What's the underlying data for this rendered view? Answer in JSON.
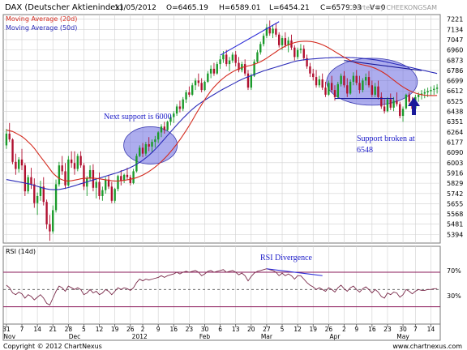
{
  "header": {
    "title": "DAX (Deutscher Aktienindex)",
    "date": "11/05/2012",
    "open": "O=6465.19",
    "high": "H=6589.01",
    "low": "L=6454.21",
    "close": "C=6579.93",
    "volume": "V=0",
    "credit": "Charted By CHEEKONGSAM"
  },
  "legend": [
    {
      "label": "Moving Average (20d)",
      "color": "#d42a1e"
    },
    {
      "label": "Moving Average (50d)",
      "color": "#2a2ab8"
    }
  ],
  "annotations": {
    "support": "Next support is 6000",
    "broken_line1": "Support broken at",
    "broken_line2": "6548",
    "rsi_div": "RSI Divergence"
  },
  "rsi_panel": {
    "label": "RSI (14d)",
    "level_high": "70%",
    "level_low": "30%"
  },
  "footer": {
    "copyright": "Copyright © 2012 ChartNexus",
    "site": "www.chartnexus.com"
  },
  "colors": {
    "up": "#1a9a2a",
    "down": "#b01030",
    "ma20": "#d42a1e",
    "ma50": "#2a2ab8",
    "rsi": "#7a2a4a",
    "ellipse": "#6a6ae0",
    "grid": "#d0d0d0",
    "rsi_band": "#8a1a5a"
  },
  "chart_data": {
    "type": "candlestick",
    "title": "DAX (Deutscher Aktienindex)",
    "x_ticks": [
      {
        "label": "31",
        "index": 0
      },
      {
        "label": "7",
        "index": 5
      },
      {
        "label": "14",
        "index": 10
      },
      {
        "label": "21",
        "index": 15
      },
      {
        "label": "28",
        "index": 20
      },
      {
        "label": "5",
        "index": 25
      },
      {
        "label": "12",
        "index": 30
      },
      {
        "label": "19",
        "index": 35
      },
      {
        "label": "26",
        "index": 40
      },
      {
        "label": "2",
        "index": 44
      },
      {
        "label": "9",
        "index": 49
      },
      {
        "label": "16",
        "index": 54
      },
      {
        "label": "23",
        "index": 59
      },
      {
        "label": "30",
        "index": 64
      },
      {
        "label": "6",
        "index": 69
      },
      {
        "label": "13",
        "index": 74
      },
      {
        "label": "20",
        "index": 79
      },
      {
        "label": "27",
        "index": 84
      },
      {
        "label": "5",
        "index": 89
      },
      {
        "label": "12",
        "index": 94
      },
      {
        "label": "19",
        "index": 99
      },
      {
        "label": "26",
        "index": 104
      },
      {
        "label": "2",
        "index": 109
      },
      {
        "label": "9",
        "index": 113
      },
      {
        "label": "16",
        "index": 118
      },
      {
        "label": "23",
        "index": 123
      },
      {
        "label": "30",
        "index": 128
      },
      {
        "label": "7",
        "index": 132
      },
      {
        "label": "14",
        "index": 137
      }
    ],
    "month_labels": [
      {
        "label": "Nov",
        "index": 1
      },
      {
        "label": "Dec",
        "index": 22
      },
      {
        "label": "2012",
        "index": 43
      },
      {
        "label": "Feb",
        "index": 64
      },
      {
        "label": "Mar",
        "index": 84
      },
      {
        "label": "Apr",
        "index": 106
      },
      {
        "label": "May",
        "index": 128
      }
    ],
    "y_ticks": [
      7221,
      7134,
      7047,
      6960,
      6873,
      6786,
      6699,
      6612,
      6525,
      6438,
      6351,
      6264,
      6177,
      6090,
      6003,
      5916,
      5829,
      5742,
      5655,
      5568,
      5481,
      5394
    ],
    "ylim": [
      5321,
      7260
    ],
    "x_count": 140,
    "candles": [
      [
        6150,
        6290,
        6120,
        6250
      ],
      [
        6250,
        6340,
        6180,
        6200
      ],
      [
        6200,
        6210,
        5990,
        6010
      ],
      [
        6010,
        6080,
        5900,
        5950
      ],
      [
        5950,
        6050,
        5920,
        6030
      ],
      [
        6030,
        6120,
        5940,
        5980
      ],
      [
        5980,
        6000,
        5720,
        5760
      ],
      [
        5760,
        5900,
        5740,
        5880
      ],
      [
        5880,
        5960,
        5780,
        5820
      ],
      [
        5820,
        5870,
        5620,
        5660
      ],
      [
        5660,
        5750,
        5560,
        5720
      ],
      [
        5720,
        5850,
        5680,
        5800
      ],
      [
        5800,
        5880,
        5640,
        5670
      ],
      [
        5670,
        5690,
        5440,
        5480
      ],
      [
        5480,
        5560,
        5340,
        5420
      ],
      [
        5420,
        5640,
        5400,
        5600
      ],
      [
        5600,
        5860,
        5580,
        5820
      ],
      [
        5820,
        6010,
        5800,
        5980
      ],
      [
        5980,
        6060,
        5900,
        5930
      ],
      [
        5930,
        6000,
        5780,
        5810
      ],
      [
        5810,
        6060,
        5800,
        6030
      ],
      [
        6030,
        6100,
        5960,
        6000
      ],
      [
        6000,
        6100,
        5900,
        5950
      ],
      [
        5950,
        6080,
        5930,
        6060
      ],
      [
        6060,
        6100,
        5960,
        5980
      ],
      [
        5980,
        6000,
        5770,
        5800
      ],
      [
        5800,
        5890,
        5720,
        5870
      ],
      [
        5870,
        5980,
        5850,
        5940
      ],
      [
        5940,
        5990,
        5760,
        5790
      ],
      [
        5790,
        5870,
        5700,
        5840
      ],
      [
        5840,
        5920,
        5690,
        5720
      ],
      [
        5720,
        5800,
        5680,
        5770
      ],
      [
        5770,
        5880,
        5740,
        5860
      ],
      [
        5860,
        5900,
        5780,
        5800
      ],
      [
        5800,
        5840,
        5660,
        5680
      ],
      [
        5680,
        5790,
        5660,
        5780
      ],
      [
        5780,
        5900,
        5760,
        5890
      ],
      [
        5890,
        5940,
        5810,
        5850
      ],
      [
        5850,
        5910,
        5830,
        5900
      ],
      [
        5900,
        5960,
        5860,
        5880
      ],
      [
        5880,
        5900,
        5810,
        5830
      ],
      [
        5830,
        5950,
        5820,
        5930
      ],
      [
        5930,
        6080,
        5920,
        6060
      ],
      [
        6060,
        6150,
        6050,
        6130
      ],
      [
        6130,
        6170,
        6050,
        6080
      ],
      [
        6080,
        6180,
        6060,
        6160
      ],
      [
        6160,
        6220,
        6100,
        6140
      ],
      [
        6140,
        6200,
        6090,
        6180
      ],
      [
        6180,
        6230,
        6130,
        6200
      ],
      [
        6200,
        6270,
        6170,
        6260
      ],
      [
        6260,
        6330,
        6220,
        6310
      ],
      [
        6310,
        6350,
        6250,
        6280
      ],
      [
        6280,
        6360,
        6270,
        6350
      ],
      [
        6350,
        6410,
        6320,
        6390
      ],
      [
        6390,
        6440,
        6340,
        6420
      ],
      [
        6420,
        6500,
        6400,
        6480
      ],
      [
        6480,
        6530,
        6430,
        6460
      ],
      [
        6460,
        6560,
        6440,
        6540
      ],
      [
        6540,
        6620,
        6510,
        6600
      ],
      [
        6600,
        6650,
        6560,
        6580
      ],
      [
        6580,
        6680,
        6570,
        6660
      ],
      [
        6660,
        6720,
        6620,
        6700
      ],
      [
        6700,
        6760,
        6650,
        6680
      ],
      [
        6680,
        6720,
        6600,
        6620
      ],
      [
        6620,
        6700,
        6610,
        6690
      ],
      [
        6690,
        6780,
        6680,
        6760
      ],
      [
        6760,
        6830,
        6720,
        6800
      ],
      [
        6800,
        6850,
        6740,
        6760
      ],
      [
        6760,
        6860,
        6750,
        6840
      ],
      [
        6840,
        6910,
        6800,
        6880
      ],
      [
        6880,
        6950,
        6850,
        6920
      ],
      [
        6920,
        6960,
        6820,
        6840
      ],
      [
        6840,
        6900,
        6780,
        6870
      ],
      [
        6870,
        6940,
        6850,
        6920
      ],
      [
        6920,
        6950,
        6820,
        6850
      ],
      [
        6850,
        6900,
        6770,
        6790
      ],
      [
        6790,
        6860,
        6770,
        6840
      ],
      [
        6840,
        6880,
        6740,
        6760
      ],
      [
        6760,
        6790,
        6620,
        6640
      ],
      [
        6640,
        6760,
        6620,
        6740
      ],
      [
        6740,
        6880,
        6730,
        6860
      ],
      [
        6860,
        6960,
        6850,
        6940
      ],
      [
        6940,
        7030,
        6920,
        7010
      ],
      [
        7010,
        7100,
        6990,
        7080
      ],
      [
        7080,
        7180,
        7060,
        7150
      ],
      [
        7150,
        7210,
        7080,
        7100
      ],
      [
        7100,
        7170,
        7060,
        7140
      ],
      [
        7140,
        7190,
        7070,
        7090
      ],
      [
        7090,
        7110,
        6980,
        7000
      ],
      [
        7000,
        7080,
        6960,
        7060
      ],
      [
        7060,
        7110,
        6980,
        7000
      ],
      [
        7000,
        7070,
        6940,
        7040
      ],
      [
        7040,
        7090,
        6960,
        6980
      ],
      [
        6980,
        7000,
        6870,
        6900
      ],
      [
        6900,
        6980,
        6880,
        6960
      ],
      [
        6960,
        7010,
        6930,
        6970
      ],
      [
        6970,
        7000,
        6870,
        6890
      ],
      [
        6890,
        6920,
        6800,
        6820
      ],
      [
        6820,
        6850,
        6730,
        6760
      ],
      [
        6760,
        6800,
        6700,
        6730
      ],
      [
        6730,
        6790,
        6640,
        6660
      ],
      [
        6660,
        6740,
        6640,
        6710
      ],
      [
        6710,
        6760,
        6620,
        6640
      ],
      [
        6640,
        6690,
        6560,
        6580
      ],
      [
        6580,
        6700,
        6570,
        6680
      ],
      [
        6680,
        6740,
        6600,
        6620
      ],
      [
        6620,
        6660,
        6530,
        6560
      ],
      [
        6560,
        6690,
        6550,
        6670
      ],
      [
        6670,
        6760,
        6650,
        6740
      ],
      [
        6740,
        6780,
        6640,
        6660
      ],
      [
        6660,
        6720,
        6560,
        6590
      ],
      [
        6590,
        6710,
        6580,
        6690
      ],
      [
        6690,
        6770,
        6660,
        6740
      ],
      [
        6740,
        6790,
        6660,
        6680
      ],
      [
        6680,
        6740,
        6590,
        6620
      ],
      [
        6620,
        6720,
        6600,
        6700
      ],
      [
        6700,
        6760,
        6660,
        6730
      ],
      [
        6730,
        6780,
        6640,
        6660
      ],
      [
        6660,
        6700,
        6560,
        6580
      ],
      [
        6580,
        6680,
        6560,
        6650
      ],
      [
        6650,
        6700,
        6540,
        6560
      ],
      [
        6560,
        6600,
        6460,
        6480
      ],
      [
        6480,
        6540,
        6420,
        6440
      ],
      [
        6440,
        6560,
        6430,
        6540
      ],
      [
        6540,
        6590,
        6450,
        6470
      ],
      [
        6470,
        6560,
        6440,
        6530
      ],
      [
        6530,
        6600,
        6480,
        6500
      ],
      [
        6500,
        6520,
        6380,
        6400
      ],
      [
        6400,
        6480,
        6350,
        6460
      ],
      [
        6465,
        6589,
        6454,
        6580
      ],
      [
        6580,
        6600,
        6500,
        6520
      ],
      [
        6520,
        6560,
        6440,
        6460
      ],
      [
        6460,
        6580,
        6450,
        6560
      ],
      [
        6560,
        6600,
        6520,
        6580
      ],
      [
        6580,
        6620,
        6540,
        6590
      ],
      [
        6590,
        6630,
        6550,
        6600
      ],
      [
        6600,
        6640,
        6560,
        6610
      ],
      [
        6610,
        6650,
        6570,
        6620
      ],
      [
        6620,
        6660,
        6580,
        6630
      ],
      [
        6630,
        6670,
        6590,
        6640
      ]
    ],
    "ma20": [
      6280,
      6275,
      6268,
      6255,
      6240,
      6225,
      6205,
      6180,
      6155,
      6125,
      6090,
      6055,
      6020,
      5985,
      5950,
      5915,
      5890,
      5870,
      5858,
      5850,
      5848,
      5850,
      5855,
      5860,
      5866,
      5870,
      5872,
      5873,
      5872,
      5870,
      5866,
      5862,
      5858,
      5854,
      5850,
      5848,
      5848,
      5850,
      5853,
      5857,
      5862,
      5868,
      5876,
      5886,
      5898,
      5912,
      5928,
      5946,
      5966,
      5988,
      6012,
      6038,
      6066,
      6096,
      6128,
      6162,
      6198,
      6236,
      6276,
      6318,
      6362,
      6408,
      6452,
      6496,
      6538,
      6576,
      6612,
      6644,
      6672,
      6698,
      6720,
      6740,
      6758,
      6774,
      6788,
      6800,
      6810,
      6818,
      6824,
      6830,
      6838,
      6848,
      6860,
      6874,
      6890,
      6908,
      6926,
      6944,
      6962,
      6978,
      6992,
      7004,
      7014,
      7022,
      7028,
      7032,
      7034,
      7034,
      7032,
      7028,
      7022,
      7014,
      7004,
      6992,
      6978,
      6962,
      6946,
      6930,
      6914,
      6898,
      6884,
      6870,
      6858,
      6848,
      6840,
      6834,
      6828,
      6822,
      6814,
      6804,
      6792,
      6778,
      6762,
      6744,
      6724,
      6704,
      6684,
      6664,
      6646,
      6630,
      6616,
      6604,
      6594,
      6586,
      6580,
      6576,
      6574,
      6573,
      6573,
      6574
    ],
    "ma50": [
      5860,
      5855,
      5850,
      5845,
      5840,
      5835,
      5830,
      5825,
      5818,
      5810,
      5802,
      5794,
      5786,
      5780,
      5776,
      5774,
      5774,
      5776,
      5780,
      5786,
      5792,
      5800,
      5808,
      5816,
      5824,
      5832,
      5840,
      5848,
      5856,
      5864,
      5872,
      5880,
      5888,
      5896,
      5904,
      5912,
      5920,
      5930,
      5940,
      5950,
      5962,
      5975,
      5990,
      6006,
      6024,
      6044,
      6066,
      6090,
      6116,
      6144,
      6174,
      6204,
      6234,
      6264,
      6294,
      6324,
      6352,
      6380,
      6406,
      6432,
      6456,
      6478,
      6498,
      6516,
      6534,
      6550,
      6566,
      6582,
      6598,
      6614,
      6628,
      6642,
      6656,
      6670,
      6684,
      6698,
      6710,
      6722,
      6732,
      6742,
      6752,
      6762,
      6772,
      6782,
      6790,
      6798,
      6806,
      6814,
      6822,
      6830,
      6838,
      6846,
      6854,
      6862,
      6868,
      6872,
      6876,
      6880,
      6882,
      6884,
      6886,
      6888,
      6890,
      6892,
      6893,
      6894,
      6895,
      6896,
      6896,
      6896,
      6896,
      6895,
      6894,
      6892,
      6890,
      6888,
      6886,
      6883,
      6880,
      6876,
      6872,
      6867,
      6862,
      6856,
      6850,
      6844,
      6838,
      6832,
      6826,
      6820,
      6814,
      6808,
      6802,
      6796,
      6790,
      6784,
      6778,
      6772,
      6766,
      6760
    ],
    "rsi": [
      55,
      52,
      46,
      44,
      47,
      45,
      40,
      44,
      42,
      38,
      41,
      44,
      40,
      34,
      32,
      40,
      48,
      54,
      52,
      48,
      54,
      52,
      50,
      52,
      50,
      44,
      46,
      50,
      46,
      48,
      44,
      46,
      50,
      48,
      44,
      48,
      52,
      50,
      52,
      51,
      49,
      52,
      58,
      62,
      60,
      62,
      61,
      62,
      63,
      64,
      66,
      64,
      66,
      67,
      68,
      70,
      68,
      70,
      71,
      70,
      71,
      72,
      70,
      66,
      68,
      71,
      72,
      70,
      71,
      72,
      73,
      70,
      71,
      72,
      70,
      67,
      69,
      66,
      60,
      65,
      69,
      71,
      72,
      73,
      74,
      73,
      72,
      70,
      66,
      69,
      66,
      68,
      66,
      62,
      66,
      66,
      62,
      58,
      55,
      53,
      50,
      52,
      50,
      48,
      52,
      50,
      47,
      52,
      55,
      51,
      48,
      52,
      54,
      50,
      47,
      51,
      53,
      50,
      46,
      50,
      47,
      42,
      40,
      46,
      44,
      47,
      46,
      41,
      44,
      50,
      48,
      45,
      48,
      50,
      49,
      49,
      50,
      50,
      51,
      51
    ],
    "rsi_levels": [
      70,
      50,
      30
    ]
  }
}
